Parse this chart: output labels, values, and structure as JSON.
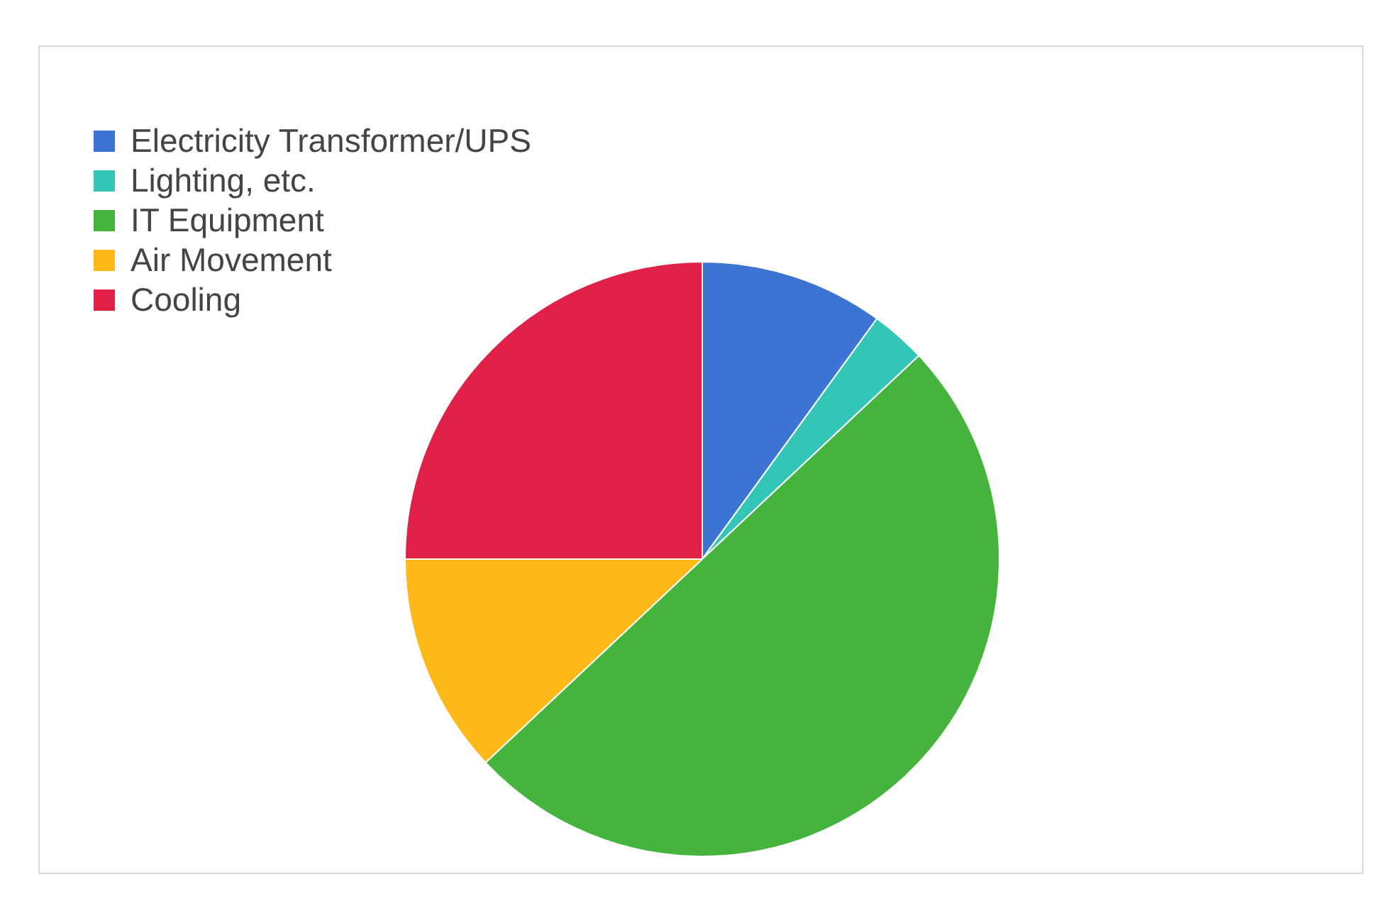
{
  "chart_data": {
    "type": "pie",
    "categories": [
      "Electricity Transformer/UPS",
      "Lighting, etc.",
      "IT Equipment",
      "Air Movement",
      "Cooling"
    ],
    "values": [
      10,
      3,
      50,
      12,
      25
    ],
    "colors": [
      "#3c74d3",
      "#33c6b7",
      "#45b43c",
      "#fdb918",
      "#e02046"
    ],
    "legend": "top left"
  }
}
